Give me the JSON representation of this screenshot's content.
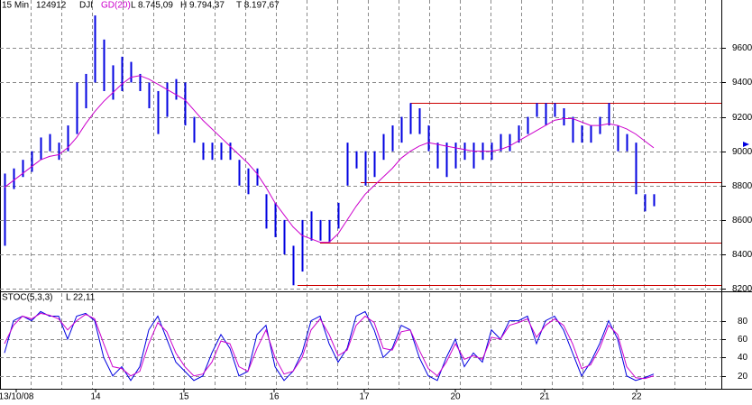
{
  "chart_data": [
    {
      "type": "ohlc",
      "header": [
        "15 Min",
        "124912",
        "DJI",
        "L 8.745,09",
        "H 9.794,37",
        "T 8.197,67"
      ],
      "x": [
        0,
        1,
        2,
        3,
        4,
        5,
        6,
        7,
        8,
        9,
        10,
        11,
        12,
        13,
        14,
        15,
        16,
        17,
        18,
        19,
        20,
        21,
        22,
        23,
        24,
        25,
        26,
        27,
        28,
        29,
        30,
        31,
        32,
        33,
        34,
        35,
        36,
        37,
        38,
        39,
        40,
        41,
        42,
        43,
        44,
        45,
        46,
        47,
        48,
        49,
        50,
        51,
        52,
        53,
        54,
        55,
        56,
        57,
        58,
        59,
        60,
        61,
        62,
        63,
        64,
        65,
        66,
        67,
        68,
        69,
        70,
        71,
        72
      ],
      "xlim": [
        -0.5,
        79.5
      ],
      "xticks": [
        {
          "value": 1.3,
          "label": "13/10/08"
        },
        {
          "value": 10.1,
          "label": "14"
        },
        {
          "value": 19.9,
          "label": "15"
        },
        {
          "value": 29.9,
          "label": "16"
        },
        {
          "value": 39.9,
          "label": "17"
        },
        {
          "value": 50,
          "label": "20"
        },
        {
          "value": 59.9,
          "label": "21"
        },
        {
          "value": 70.1,
          "label": "22"
        }
      ],
      "ylim": [
        8190,
        9880
      ],
      "yticks": [
        8200,
        8400,
        8600,
        8800,
        9000,
        9200,
        9400,
        9600
      ],
      "bars": {
        "color": "#0000e0",
        "high": [
          8870,
          8900,
          8950,
          9000,
          9080,
          9100,
          9050,
          9150,
          9400,
          9450,
          9790,
          9650,
          9500,
          9550,
          9520,
          9450,
          9400,
          9350,
          9400,
          9420,
          9400,
          9200,
          9050,
          9050,
          9050,
          9050,
          8950,
          8900,
          8900,
          8750,
          8700,
          8600,
          8450,
          8600,
          8650,
          8600,
          8600,
          8700,
          9050,
          9000,
          9000,
          9000,
          9100,
          9150,
          9200,
          9280,
          9250,
          9150,
          9050,
          9050,
          9050,
          9050,
          9050,
          9050,
          9050,
          9100,
          9100,
          9150,
          9200,
          9280,
          9280,
          9280,
          9250,
          9200,
          9150,
          9150,
          9200,
          9280,
          9150,
          9100,
          9050,
          8750,
          8750
        ],
        "low": [
          8450,
          8780,
          8850,
          8880,
          8950,
          9000,
          8950,
          9000,
          9100,
          9250,
          9400,
          9350,
          9300,
          9350,
          9400,
          9350,
          9250,
          9100,
          9200,
          9300,
          9150,
          9050,
          8950,
          8950,
          8950,
          8950,
          8800,
          8750,
          8800,
          8550,
          8500,
          8400,
          8220,
          8300,
          8480,
          8480,
          8470,
          8550,
          8800,
          8900,
          8800,
          8850,
          8950,
          9000,
          9050,
          9100,
          9100,
          9000,
          8900,
          8850,
          8900,
          8950,
          8900,
          8950,
          8950,
          9000,
          9000,
          9050,
          9100,
          9200,
          9150,
          9200,
          9150,
          9050,
          9050,
          9050,
          9100,
          9150,
          9000,
          9000,
          8750,
          8650,
          8680
        ]
      },
      "ma": {
        "name": "GD(20)",
        "color": "#cc00cc",
        "values": [
          8790,
          8830,
          8870,
          8910,
          8950,
          8970,
          8980,
          9020,
          9080,
          9160,
          9230,
          9290,
          9340,
          9390,
          9430,
          9440,
          9420,
          9390,
          9360,
          9330,
          9300,
          9240,
          9180,
          9130,
          9080,
          9030,
          8980,
          8930,
          8870,
          8790,
          8700,
          8630,
          8560,
          8510,
          8490,
          8470,
          8470,
          8520,
          8600,
          8680,
          8750,
          8800,
          8850,
          8900,
          8960,
          9000,
          9030,
          9050,
          9040,
          9030,
          9020,
          9010,
          9000,
          9000,
          9000,
          9010,
          9030,
          9060,
          9090,
          9120,
          9150,
          9180,
          9190,
          9190,
          9170,
          9150,
          9150,
          9160,
          9150,
          9130,
          9100,
          9060,
          9020
        ]
      },
      "levels": {
        "color": "#cc0000",
        "values": [
          9280,
          8820,
          8470,
          8220
        ],
        "start": [
          45,
          39.5,
          35,
          32.5
        ]
      },
      "grid": true
    },
    {
      "type": "line",
      "title": "STOC(5,3,3)",
      "label": "L 22,11",
      "ylim": [
        6,
        110
      ],
      "yticks": [
        20,
        40,
        60,
        80
      ],
      "series": [
        {
          "color": "#0000e0",
          "values": [
            45,
            80,
            85,
            80,
            90,
            85,
            85,
            60,
            85,
            88,
            80,
            40,
            20,
            30,
            15,
            30,
            70,
            85,
            60,
            35,
            25,
            15,
            20,
            45,
            65,
            50,
            20,
            25,
            65,
            75,
            30,
            15,
            25,
            45,
            80,
            85,
            55,
            35,
            50,
            85,
            90,
            70,
            40,
            50,
            75,
            70,
            40,
            20,
            15,
            40,
            60,
            30,
            45,
            35,
            70,
            60,
            80,
            80,
            85,
            55,
            80,
            85,
            70,
            45,
            20,
            35,
            55,
            80,
            60,
            20,
            15,
            18,
            22
          ]
        },
        {
          "color": "#cc00cc",
          "values": [
            55,
            75,
            85,
            82,
            88,
            86,
            82,
            70,
            80,
            87,
            82,
            55,
            30,
            28,
            20,
            25,
            55,
            78,
            68,
            45,
            30,
            20,
            22,
            35,
            58,
            55,
            30,
            25,
            50,
            70,
            40,
            22,
            25,
            40,
            70,
            82,
            65,
            42,
            48,
            75,
            85,
            78,
            50,
            48,
            68,
            70,
            48,
            28,
            20,
            35,
            55,
            38,
            42,
            38,
            62,
            60,
            75,
            78,
            82,
            62,
            75,
            82,
            75,
            55,
            28,
            32,
            50,
            75,
            65,
            30,
            18,
            17,
            20
          ]
        }
      ],
      "grid": true
    }
  ]
}
